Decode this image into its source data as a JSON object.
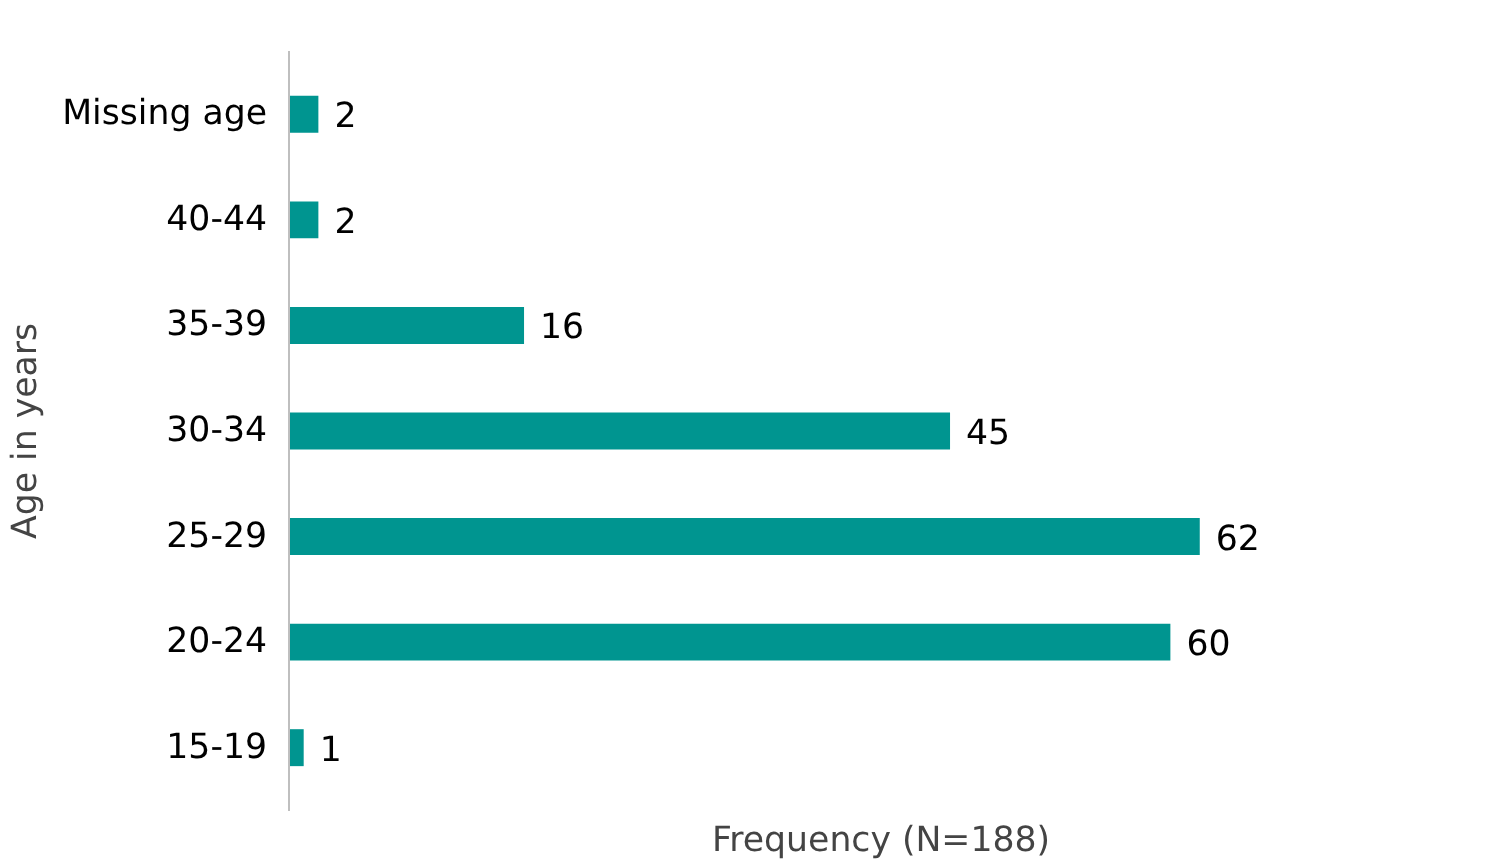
{
  "chart_data": {
    "type": "bar",
    "orientation": "horizontal",
    "xlabel": "Frequency (N=188)",
    "ylabel": "Age in years",
    "categories": [
      "Missing age",
      "40-44",
      "35-39",
      "30-34",
      "25-29",
      "20-24",
      "15-19"
    ],
    "values": [
      2,
      2,
      16,
      45,
      62,
      60,
      1
    ],
    "color": "#009590",
    "data_labels": true,
    "grid": false,
    "tick_labels": "y"
  }
}
